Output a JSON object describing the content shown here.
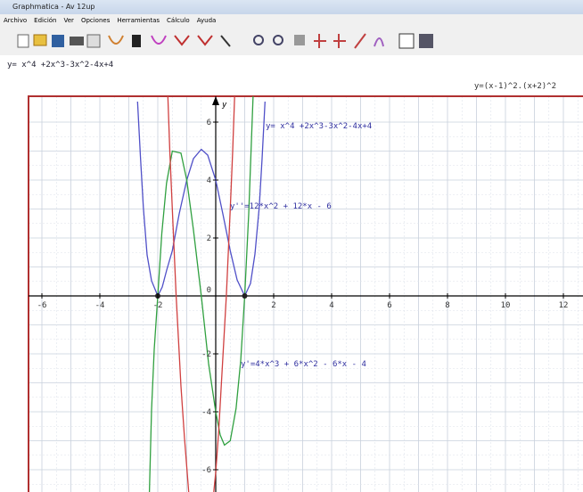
{
  "window": {
    "title": "Graphmatica - Av 12up"
  },
  "menu": [
    "Archivo",
    "Edición",
    "Ver",
    "Opciones",
    "Herramientas",
    "Cálculo",
    "Ayuda"
  ],
  "equation_input": "y= x^4 +2x^3-3x^2-4x+4",
  "status": "y=(x-1)^2.(x+2)^2",
  "graph": {
    "x_ticks": [
      -6,
      -4,
      -2,
      0,
      2,
      4,
      6,
      8,
      10,
      12
    ],
    "y_ticks": [
      6,
      4,
      2,
      0,
      -2,
      -4,
      -6
    ],
    "curve_labels": [
      "y= x^4 +2x^3-3x^2-4x+4",
      "y''=12*x^2 + 12*x - 6",
      "y'=4*x^3 + 6*x^2 - 6*x - 4"
    ]
  }
}
